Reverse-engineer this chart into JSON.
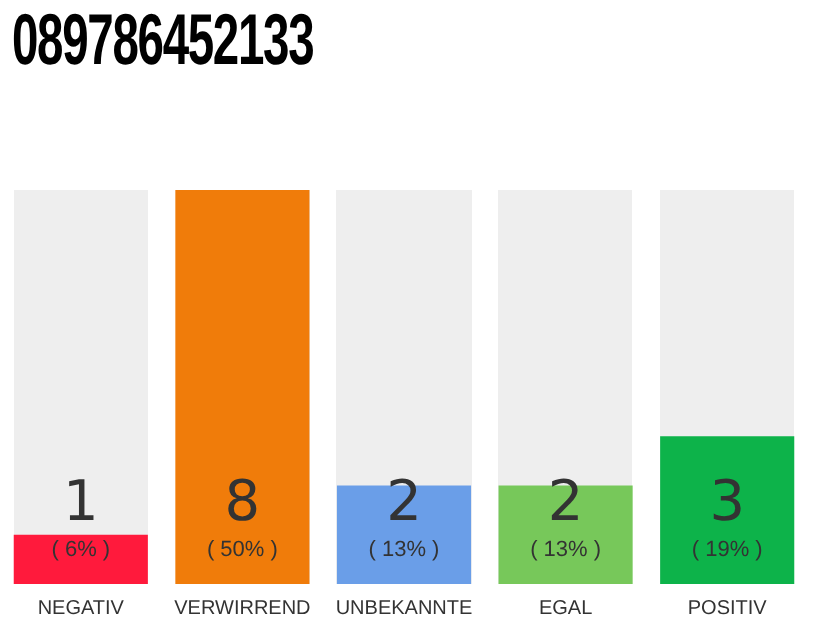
{
  "chart_data": {
    "type": "bar",
    "title": "089786452133",
    "categories": [
      "NEGATIV",
      "VERWIRREND",
      "UNBEKANNTE",
      "EGAL",
      "POSITIV"
    ],
    "values": [
      1,
      8,
      2,
      2,
      3
    ],
    "colors": [
      "#ff1a3c",
      "#f07c0a",
      "#6a9ee8",
      "#77c85a",
      "#0db34a"
    ],
    "value_labels": [
      "1\n( 6% )",
      "8\n( 50% )",
      "2\n( 13% )",
      "2\n( 13% )",
      "3\n( 19% )"
    ],
    "grid": false,
    "legend": false
  }
}
